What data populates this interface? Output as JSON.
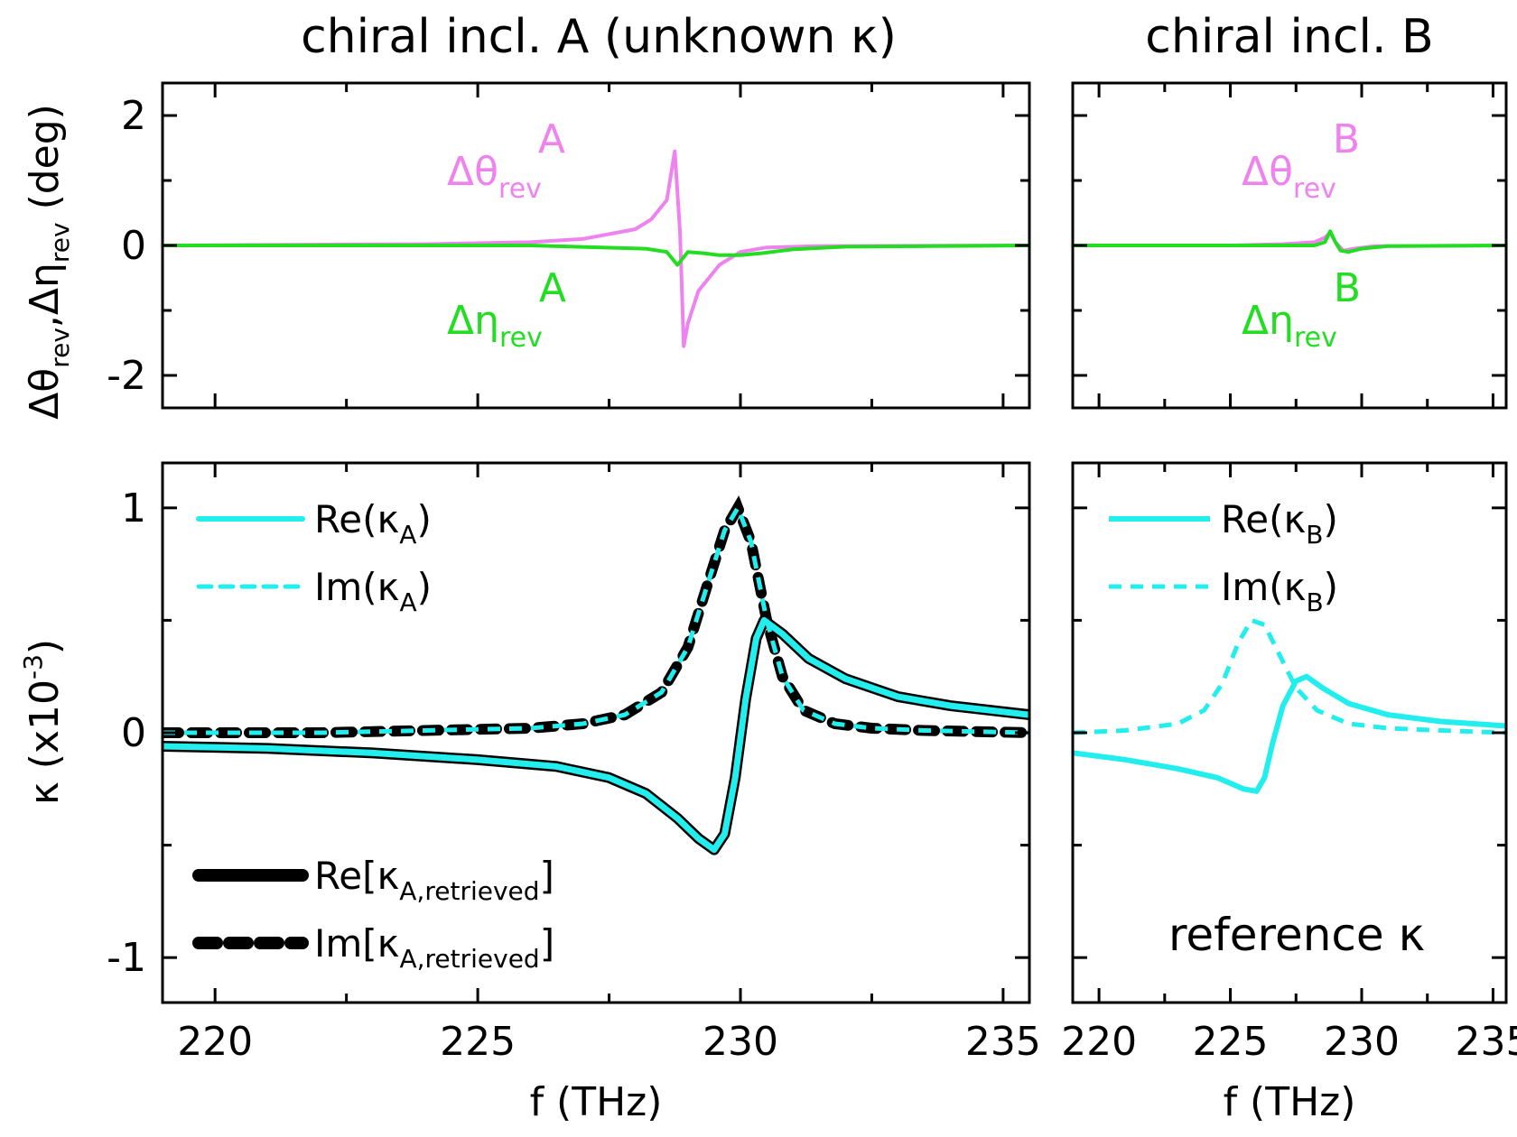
{
  "figure": {
    "title_left": "chiral incl. A (unknown κ)",
    "title_right": "chiral incl. B",
    "reference_label": "reference κ"
  },
  "colors": {
    "theta": "#ee82ee",
    "eta": "#22dd22",
    "kappa": "#22eeee",
    "retrieved": "#000000"
  },
  "chart_data": [
    {
      "id": "top-left",
      "type": "line",
      "ylabel": "Δθrev,Δηrev (deg)",
      "ylim": [
        -2.5,
        2.5
      ],
      "xlim": [
        219,
        235.5
      ],
      "yticks": [
        -2,
        0,
        2
      ],
      "ytick_labels": [
        "-2",
        "0",
        "2"
      ],
      "series": [
        {
          "name": "ΔθrevA",
          "label_main": "Δθ",
          "label_sub": "rev",
          "label_sup": "A",
          "color": "theta",
          "x": [
            219,
            224,
            226,
            227,
            228,
            228.3,
            228.6,
            228.75,
            228.85,
            228.92,
            229.0,
            229.2,
            229.6,
            230.0,
            230.5,
            231.5,
            235.5
          ],
          "y": [
            0,
            0.02,
            0.05,
            0.1,
            0.25,
            0.4,
            0.7,
            1.45,
            0.2,
            -1.55,
            -1.2,
            -0.7,
            -0.3,
            -0.1,
            -0.03,
            -0.01,
            0
          ]
        },
        {
          "name": "ΔηrevA",
          "label_main": "Δη",
          "label_sub": "rev",
          "label_sup": "A",
          "color": "eta",
          "x": [
            219,
            226,
            228.2,
            228.6,
            228.8,
            229.0,
            229.3,
            229.6,
            230.0,
            230.4,
            231.0,
            232.0,
            235.5
          ],
          "y": [
            0,
            0,
            -0.05,
            -0.1,
            -0.3,
            -0.1,
            -0.12,
            -0.15,
            -0.15,
            -0.12,
            -0.06,
            -0.02,
            0
          ]
        }
      ]
    },
    {
      "id": "top-right",
      "type": "line",
      "ylim": [
        -2.5,
        2.5
      ],
      "xlim": [
        219,
        235.5
      ],
      "series": [
        {
          "name": "ΔθrevB",
          "label_main": "Δθ",
          "label_sub": "rev",
          "label_sup": "B",
          "color": "theta",
          "x": [
            219,
            225,
            227,
            228.2,
            228.6,
            228.8,
            229.0,
            229.3,
            229.7,
            230.5,
            235.5
          ],
          "y": [
            0,
            0,
            0.02,
            0.05,
            0.12,
            0.2,
            0.05,
            -0.08,
            -0.05,
            -0.01,
            0
          ]
        },
        {
          "name": "ΔηrevB",
          "label_main": "Δη",
          "label_sub": "rev",
          "label_sup": "B",
          "color": "eta",
          "x": [
            219,
            225,
            227,
            228.2,
            228.6,
            228.8,
            229.0,
            229.2,
            229.5,
            230.0,
            231.0,
            235.5
          ],
          "y": [
            0,
            0,
            0.0,
            0.0,
            0.05,
            0.22,
            0.05,
            -0.08,
            -0.1,
            -0.05,
            -0.01,
            0
          ]
        }
      ]
    },
    {
      "id": "bottom-left",
      "type": "line",
      "ylabel": "κ (x10-3)",
      "xlabel": "f (THz)",
      "ylim": [
        -1.2,
        1.2
      ],
      "xlim": [
        219,
        235.5
      ],
      "yticks": [
        -1,
        0,
        1
      ],
      "ytick_labels": [
        "-1",
        "0",
        "1"
      ],
      "xticks": [
        220,
        225,
        230,
        235
      ],
      "xtick_labels": [
        "220",
        "225",
        "230",
        "235"
      ],
      "series": [
        {
          "name": "Re(κA)",
          "label_main": "Re(κ",
          "label_sub": "A",
          "label_end": ")",
          "color": "kappa",
          "style": "solid",
          "x": [
            219,
            221,
            223,
            225,
            226.5,
            227.5,
            228.2,
            228.8,
            229.2,
            229.5,
            229.7,
            229.9,
            230.1,
            230.3,
            230.45,
            230.8,
            231.3,
            232,
            233,
            234,
            235.5
          ],
          "y": [
            -0.06,
            -0.07,
            -0.09,
            -0.12,
            -0.15,
            -0.2,
            -0.27,
            -0.38,
            -0.47,
            -0.52,
            -0.45,
            -0.2,
            0.15,
            0.42,
            0.5,
            0.44,
            0.33,
            0.24,
            0.16,
            0.12,
            0.08
          ]
        },
        {
          "name": "Im(κA)",
          "label_main": "Im(κ",
          "label_sub": "A",
          "label_end": ")",
          "color": "kappa",
          "style": "dashed",
          "x": [
            219,
            222,
            224,
            226,
            227,
            227.8,
            228.5,
            229.0,
            229.4,
            229.7,
            229.95,
            230.2,
            230.5,
            230.8,
            231.2,
            231.8,
            232.5,
            233.5,
            235.5
          ],
          "y": [
            0,
            0,
            0.01,
            0.02,
            0.04,
            0.08,
            0.18,
            0.38,
            0.68,
            0.9,
            1.0,
            0.85,
            0.5,
            0.25,
            0.1,
            0.04,
            0.02,
            0.01,
            0
          ]
        },
        {
          "name": "Re[κA,retrieved]",
          "label_main": "Re[κ",
          "label_sub": "A,retrieved",
          "label_end": "]",
          "color": "retrieved",
          "style": "solid",
          "ref": "Re(κA)"
        },
        {
          "name": "Im[κA,retrieved]",
          "label_main": "Im[κ",
          "label_sub": "A,retrieved",
          "label_end": "]",
          "color": "retrieved",
          "style": "dashed",
          "ref": "Im(κA)"
        }
      ]
    },
    {
      "id": "bottom-right",
      "type": "line",
      "xlabel": "f (THz)",
      "ylim": [
        -1.2,
        1.2
      ],
      "xlim": [
        219,
        235.5
      ],
      "xticks": [
        220,
        225,
        230,
        235
      ],
      "xtick_labels": [
        "220",
        "225",
        "230",
        "235"
      ],
      "series": [
        {
          "name": "Re(κB)",
          "label_main": "Re(κ",
          "label_sub": "B",
          "label_end": ")",
          "color": "kappa",
          "style": "solid",
          "x": [
            219,
            221,
            223,
            224.5,
            225.5,
            226.0,
            226.3,
            226.6,
            227.0,
            227.5,
            227.9,
            228.5,
            229.5,
            231,
            233,
            235.5
          ],
          "y": [
            -0.09,
            -0.12,
            -0.16,
            -0.2,
            -0.25,
            -0.26,
            -0.2,
            -0.05,
            0.12,
            0.23,
            0.25,
            0.2,
            0.13,
            0.08,
            0.05,
            0.03
          ]
        },
        {
          "name": "Im(κB)",
          "label_main": "Im(κ",
          "label_sub": "B",
          "label_end": ")",
          "color": "kappa",
          "style": "dashed",
          "x": [
            219,
            221,
            223,
            224,
            224.7,
            225.3,
            225.8,
            226.3,
            226.9,
            227.5,
            228.3,
            229.5,
            231,
            233,
            235.5
          ],
          "y": [
            0,
            0.01,
            0.04,
            0.1,
            0.22,
            0.4,
            0.5,
            0.48,
            0.34,
            0.2,
            0.1,
            0.04,
            0.02,
            0.01,
            0
          ]
        }
      ]
    }
  ]
}
